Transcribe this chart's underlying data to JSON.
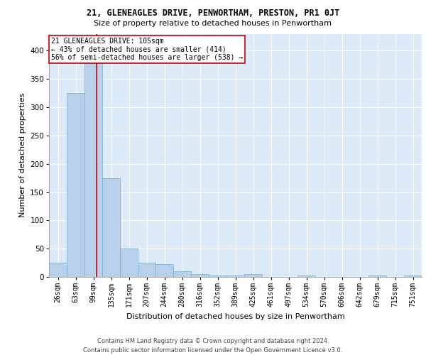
{
  "title1": "21, GLENEAGLES DRIVE, PENWORTHAM, PRESTON, PR1 0JT",
  "title2": "Size of property relative to detached houses in Penwortham",
  "xlabel": "Distribution of detached houses by size in Penwortham",
  "ylabel": "Number of detached properties",
  "footer1": "Contains HM Land Registry data © Crown copyright and database right 2024.",
  "footer2": "Contains public sector information licensed under the Open Government Licence v3.0.",
  "bin_labels": [
    "26sqm",
    "63sqm",
    "99sqm",
    "135sqm",
    "171sqm",
    "207sqm",
    "244sqm",
    "280sqm",
    "316sqm",
    "352sqm",
    "389sqm",
    "425sqm",
    "461sqm",
    "497sqm",
    "534sqm",
    "570sqm",
    "606sqm",
    "642sqm",
    "679sqm",
    "715sqm",
    "751sqm"
  ],
  "bar_heights": [
    25,
    325,
    415,
    175,
    50,
    25,
    22,
    10,
    5,
    2,
    2,
    5,
    0,
    0,
    2,
    0,
    0,
    0,
    2,
    0,
    2
  ],
  "bar_color": "#b8d0ea",
  "bar_edge_color": "#7aadd4",
  "background_color": "#ddeaf7",
  "grid_color": "#ffffff",
  "red_line_x": 2.17,
  "red_line_color": "#cc0000",
  "annotation_text": "21 GLENEAGLES DRIVE: 105sqm\n← 43% of detached houses are smaller (414)\n56% of semi-detached houses are larger (538) →",
  "annotation_box_color": "#ffffff",
  "annotation_box_edge": "#cc0000",
  "ylim": [
    0,
    430
  ],
  "yticks": [
    0,
    50,
    100,
    150,
    200,
    250,
    300,
    350,
    400
  ],
  "title1_fontsize": 8.5,
  "title2_fontsize": 8,
  "ylabel_fontsize": 8,
  "xlabel_fontsize": 8,
  "tick_fontsize": 7,
  "footer_fontsize": 6
}
